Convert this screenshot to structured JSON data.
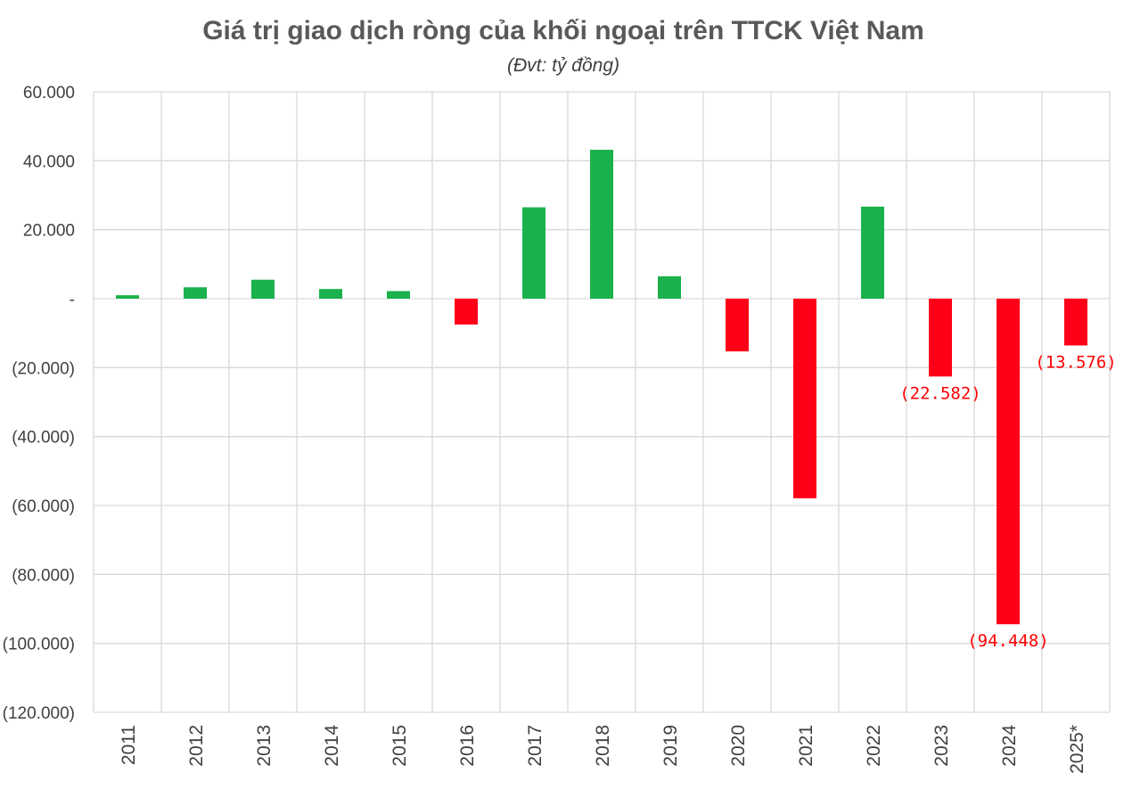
{
  "chart_data": {
    "type": "bar",
    "title": "Giá trị giao dịch ròng của khối ngoại trên TTCK Việt Nam",
    "subtitle": "(Đvt: tỷ đồng)",
    "xlabel": "",
    "ylabel": "",
    "categories": [
      "2011",
      "2012",
      "2013",
      "2014",
      "2015",
      "2016",
      "2017",
      "2018",
      "2019",
      "2020",
      "2021",
      "2022",
      "2023",
      "2024",
      "2025*"
    ],
    "values": [
      1000,
      3300,
      5500,
      2800,
      2200,
      -7500,
      26500,
      43200,
      6500,
      -15300,
      -57900,
      26700,
      -22582,
      -94448,
      -13576
    ],
    "data_labels": [
      "",
      "",
      "",
      "",
      "",
      "",
      "",
      "",
      "",
      "",
      "",
      "",
      "(22.582)",
      "(94.448)",
      "(13.576)"
    ],
    "ylim": [
      -120000,
      60000
    ],
    "yticks": [
      60000,
      40000,
      20000,
      0,
      -20000,
      -40000,
      -60000,
      -80000,
      -100000,
      -120000
    ],
    "ytick_labels": [
      "60.000",
      "40.000",
      "20.000",
      "-",
      "(20.000)",
      "(40.000)",
      "(60.000)",
      "(80.000)",
      "(100.000)",
      "(120.000)"
    ],
    "grid": true,
    "colors": {
      "positive": "#1BB14C",
      "negative": "#FF0018",
      "grid": "#D9D9D9",
      "label": "#FF0000"
    }
  }
}
